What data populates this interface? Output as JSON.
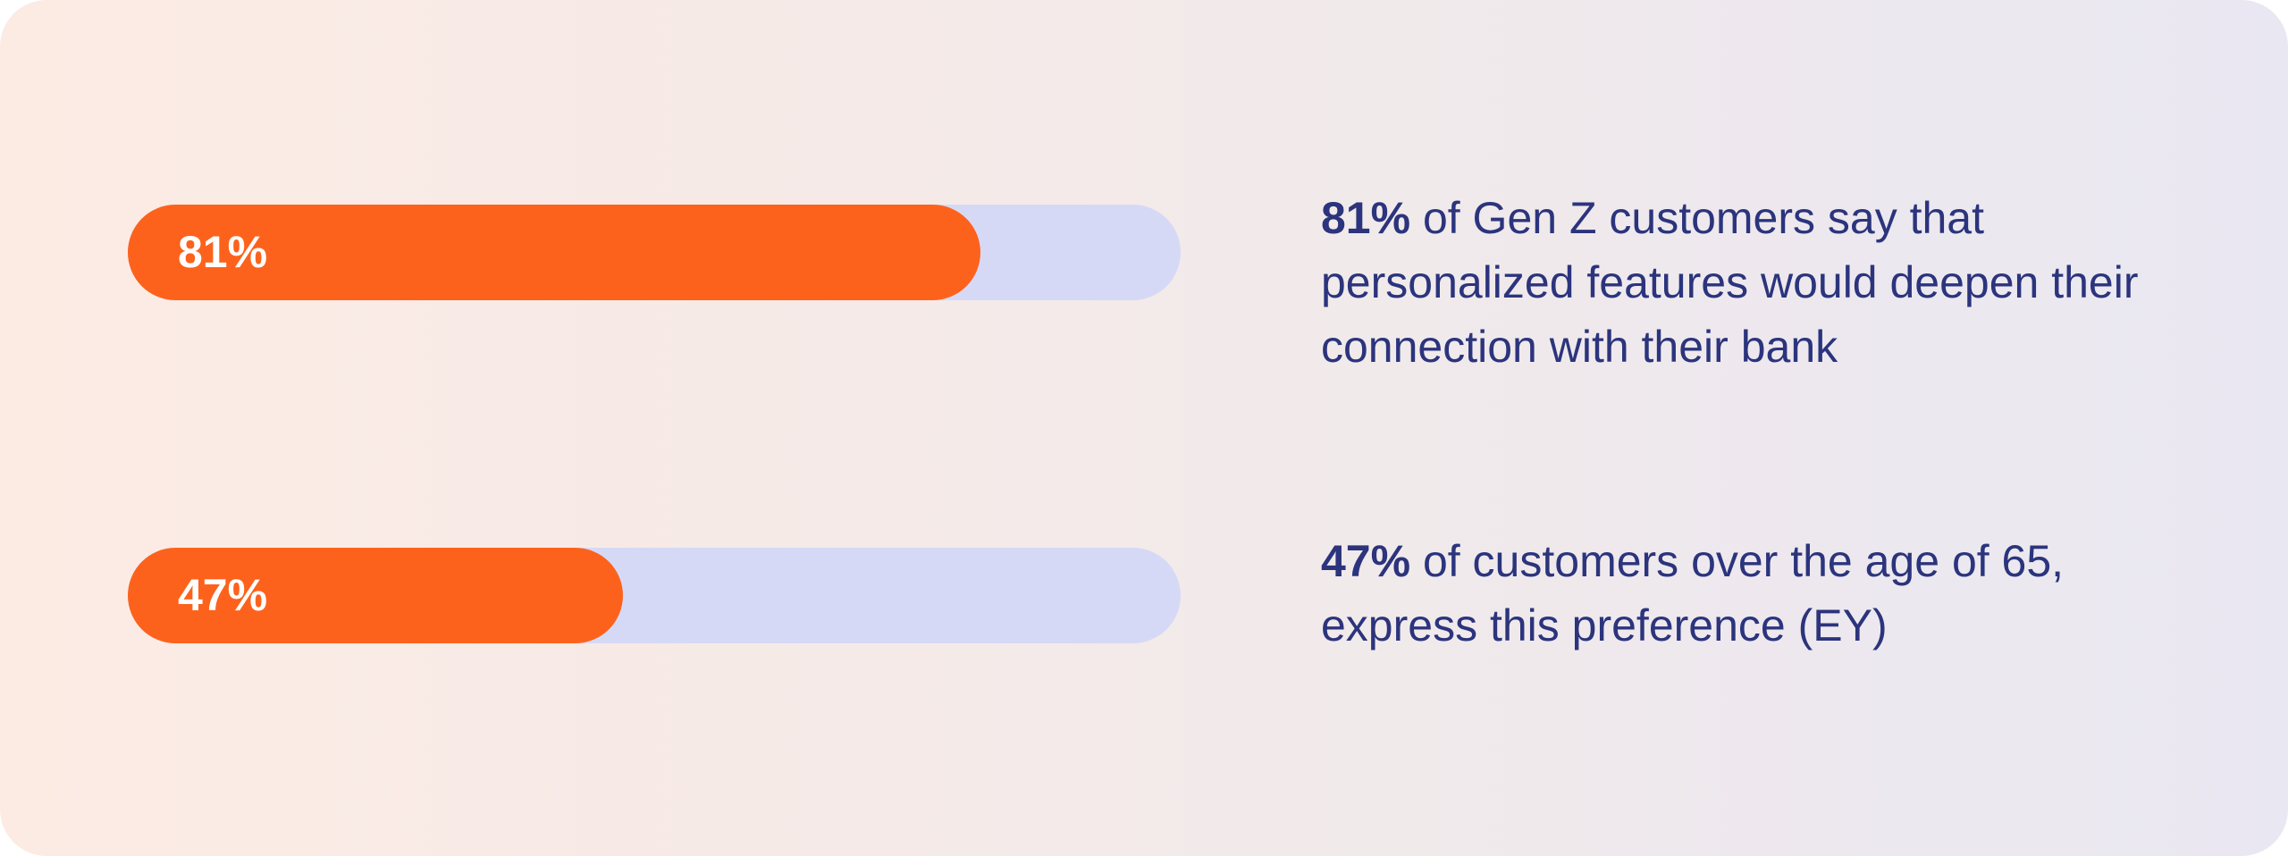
{
  "colors": {
    "accent": "#fd621c",
    "track": "#d6d9f6",
    "text": "#2b347c"
  },
  "chart_data": {
    "type": "bar",
    "orientation": "horizontal",
    "xlim": [
      0,
      100
    ],
    "unit": "%",
    "bars": [
      {
        "value": 81,
        "label": "81%",
        "stat_value": "81%",
        "stat_text": " of Gen Z customers say that personalized features would deepen their connection with their bank"
      },
      {
        "value": 47,
        "label": "47%",
        "stat_value": "47%",
        "stat_text": " of customers over the age of 65, express this preference (EY)"
      }
    ]
  }
}
